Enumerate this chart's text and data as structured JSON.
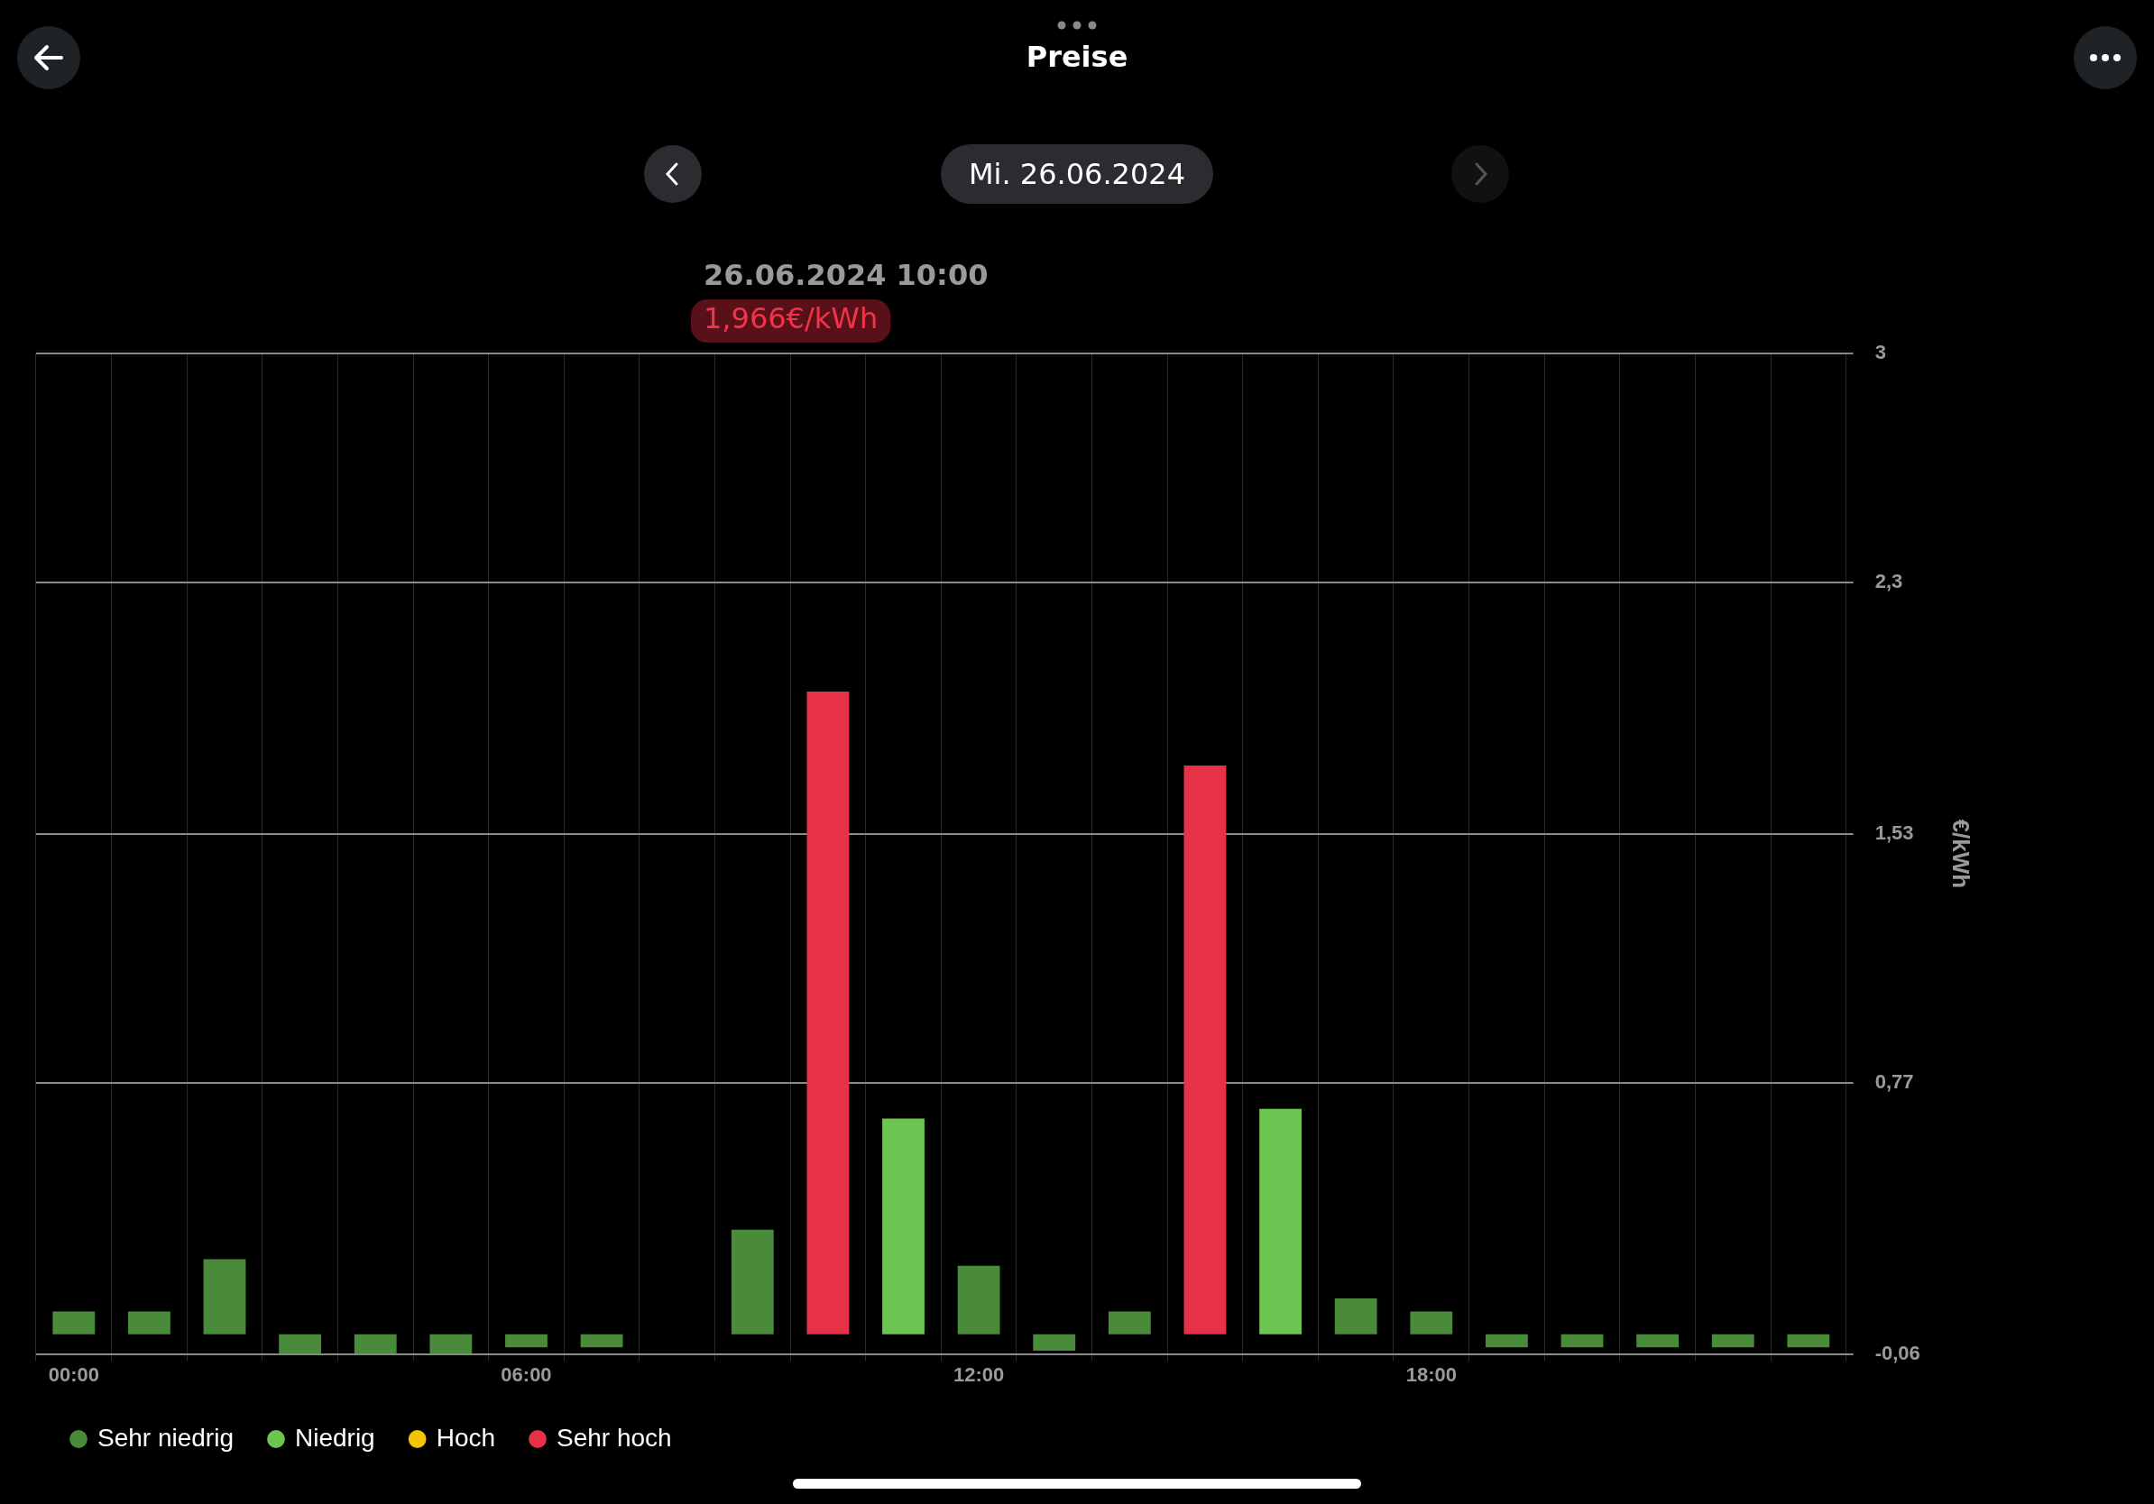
{
  "chart_data": {
    "type": "bar",
    "title": "Preise",
    "subtitle": "Mi. 26.06.2024",
    "ylabel": "€/kWh",
    "categories": [
      "00:00",
      null,
      null,
      null,
      null,
      null,
      "06:00",
      null,
      null,
      null,
      null,
      null,
      "12:00",
      null,
      null,
      null,
      null,
      null,
      "18:00",
      null,
      null,
      null,
      null,
      null
    ],
    "series": [
      {
        "name": "Sehr niedrig",
        "color": "#4a8a3b",
        "values": [
          0.07,
          0.07,
          0.23,
          -0.06,
          -0.06,
          -0.06,
          -0.04,
          -0.04,
          null,
          0.32,
          null,
          null,
          0.21,
          -0.05,
          0.07,
          null,
          null,
          0.11,
          0.07,
          -0.04,
          -0.04,
          -0.04,
          -0.04,
          -0.04
        ]
      },
      {
        "name": "Niedrig",
        "color": "#6cc551",
        "values": [
          null,
          null,
          null,
          null,
          null,
          null,
          null,
          null,
          null,
          null,
          null,
          0.66,
          null,
          null,
          null,
          null,
          0.69,
          null,
          null,
          null,
          null,
          null,
          null,
          null
        ]
      },
      {
        "name": "Hoch",
        "color": "#f5c400",
        "values": [
          null,
          null,
          null,
          null,
          null,
          null,
          null,
          null,
          null,
          null,
          null,
          null,
          null,
          null,
          null,
          null,
          null,
          null,
          null,
          null,
          null,
          null,
          null,
          null
        ]
      },
      {
        "name": "Sehr hoch",
        "color": "#e63146",
        "values": [
          null,
          null,
          null,
          null,
          null,
          null,
          null,
          null,
          null,
          null,
          1.966,
          null,
          null,
          null,
          null,
          1.74,
          null,
          null,
          null,
          null,
          null,
          null,
          null,
          null
        ]
      }
    ],
    "ylim": [
      -0.06,
      3
    ],
    "yticks": [
      {
        "value": -0.06,
        "label": "-0,06"
      },
      {
        "value": 0.77,
        "label": "0,77"
      },
      {
        "value": 1.53,
        "label": "1,53"
      },
      {
        "value": 2.3,
        "label": "2,3"
      },
      3
    ],
    "grid": true,
    "legend": "bottom left",
    "annotations": [
      "26.06.2024 10:00",
      "1,966€/kWh"
    ]
  }
}
